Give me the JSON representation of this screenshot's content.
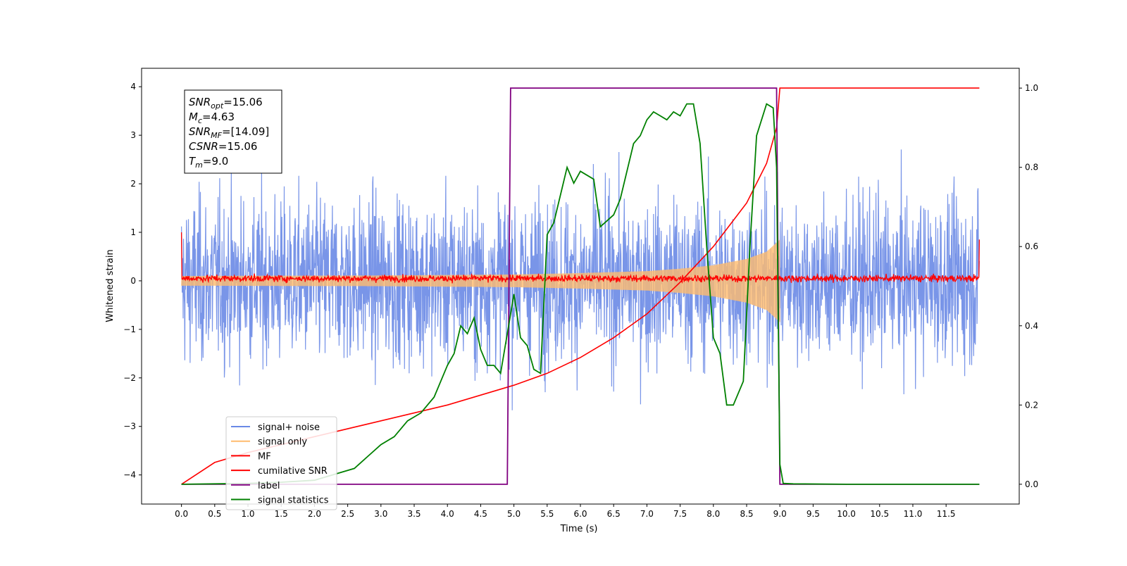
{
  "chart_data": {
    "type": "line",
    "xlabel": "Time (s)",
    "ylabel": "Whitened strain",
    "xlim": [
      -0.6,
      12.6
    ],
    "ylim": [
      -4.6,
      4.38
    ],
    "y2lim": [
      -0.05,
      1.05
    ],
    "x_ticks": [
      "0.0",
      "0.5",
      "1.0",
      "1.5",
      "2.0",
      "2.5",
      "3.0",
      "3.5",
      "4.0",
      "4.5",
      "5.0",
      "5.5",
      "6.0",
      "6.5",
      "7.0",
      "7.5",
      "8.0",
      "8.5",
      "9.0",
      "9.5",
      "10.0",
      "10.5",
      "11.0",
      "11.5"
    ],
    "y_ticks": [
      "4",
      "3",
      "2",
      "1",
      "0",
      "−1",
      "−2",
      "−3",
      "−4"
    ],
    "y2_ticks": [
      "1.0",
      "0.8",
      "0.6",
      "0.4",
      "0.2",
      "0.0"
    ],
    "annotation": {
      "lines": [
        {
          "base": "SNR",
          "sub": "opt",
          "value": "=15.06"
        },
        {
          "base": "M",
          "sub": "c",
          "value": "=4.63"
        },
        {
          "base": "SNR",
          "sub": "MF",
          "value": "=[14.09]"
        },
        {
          "base": "CSNR",
          "sub": "",
          "value": "=15.06"
        },
        {
          "base": "T",
          "sub": "m",
          "value": "=9.0"
        }
      ]
    },
    "legend": {
      "placement": "lower-left",
      "entries": [
        {
          "label": "signal+ noise",
          "color": "#6a89e6"
        },
        {
          "label": "signal only",
          "color": "#ffbb6e"
        },
        {
          "label": "MF",
          "color": "#ff0000"
        },
        {
          "label": "cumilative SNR",
          "color": "#ff0000"
        },
        {
          "label": "label",
          "color": "#800080"
        },
        {
          "label": "signal statistics",
          "color": "#008000"
        }
      ]
    },
    "series": [
      {
        "name": "signal+ noise",
        "axis": "left",
        "color": "#6a89e6",
        "noise_std": 0.85,
        "t_start": 0,
        "t_end": 12
      },
      {
        "name": "signal only",
        "axis": "left",
        "color": "#ffbb6e",
        "envelope": [
          [
            0,
            0.1
          ],
          [
            3,
            0.11
          ],
          [
            5,
            0.13
          ],
          [
            6,
            0.16
          ],
          [
            7,
            0.2
          ],
          [
            7.5,
            0.25
          ],
          [
            8,
            0.32
          ],
          [
            8.5,
            0.45
          ],
          [
            8.8,
            0.6
          ],
          [
            9.0,
            0.85
          ],
          [
            9.0,
            0
          ]
        ]
      },
      {
        "name": "MF",
        "axis": "left",
        "color": "#ff0000",
        "noise_std": 0.05,
        "edge_start": 1.0,
        "edge_end": 0.85
      },
      {
        "name": "cumilative SNR",
        "axis": "right",
        "color": "#ff0000",
        "points": [
          [
            0,
            0
          ],
          [
            0.5,
            0.055
          ],
          [
            1,
            0.08
          ],
          [
            2,
            0.12
          ],
          [
            3,
            0.16
          ],
          [
            4,
            0.2
          ],
          [
            5,
            0.25
          ],
          [
            5.5,
            0.28
          ],
          [
            6,
            0.32
          ],
          [
            6.5,
            0.37
          ],
          [
            7,
            0.43
          ],
          [
            7.5,
            0.51
          ],
          [
            8,
            0.6
          ],
          [
            8.5,
            0.71
          ],
          [
            8.8,
            0.81
          ],
          [
            8.95,
            0.9
          ],
          [
            9.0,
            1.0
          ],
          [
            12,
            1.0
          ]
        ]
      },
      {
        "name": "label",
        "axis": "right",
        "color": "#800080",
        "points": [
          [
            0,
            0
          ],
          [
            4.9,
            0
          ],
          [
            4.95,
            1.0
          ],
          [
            8.95,
            1.0
          ],
          [
            9.0,
            0
          ],
          [
            12,
            0
          ]
        ]
      },
      {
        "name": "signal statistics",
        "axis": "right",
        "color": "#008000",
        "points": [
          [
            0,
            0
          ],
          [
            0.5,
            0.001
          ],
          [
            1,
            0.002
          ],
          [
            1.5,
            0.005
          ],
          [
            2.0,
            0.01
          ],
          [
            2.2,
            0.02
          ],
          [
            2.4,
            0.03
          ],
          [
            2.6,
            0.04
          ],
          [
            2.8,
            0.07
          ],
          [
            3.0,
            0.1
          ],
          [
            3.2,
            0.12
          ],
          [
            3.4,
            0.16
          ],
          [
            3.6,
            0.18
          ],
          [
            3.8,
            0.22
          ],
          [
            4.0,
            0.3
          ],
          [
            4.1,
            0.33
          ],
          [
            4.2,
            0.4
          ],
          [
            4.3,
            0.38
          ],
          [
            4.4,
            0.42
          ],
          [
            4.5,
            0.34
          ],
          [
            4.6,
            0.3
          ],
          [
            4.7,
            0.3
          ],
          [
            4.8,
            0.28
          ],
          [
            4.9,
            0.38
          ],
          [
            5.0,
            0.48
          ],
          [
            5.1,
            0.37
          ],
          [
            5.2,
            0.35
          ],
          [
            5.3,
            0.29
          ],
          [
            5.4,
            0.28
          ],
          [
            5.5,
            0.63
          ],
          [
            5.6,
            0.66
          ],
          [
            5.8,
            0.8
          ],
          [
            5.9,
            0.76
          ],
          [
            6.0,
            0.79
          ],
          [
            6.2,
            0.77
          ],
          [
            6.3,
            0.65
          ],
          [
            6.5,
            0.68
          ],
          [
            6.6,
            0.72
          ],
          [
            6.8,
            0.86
          ],
          [
            6.9,
            0.88
          ],
          [
            7.0,
            0.92
          ],
          [
            7.1,
            0.94
          ],
          [
            7.2,
            0.93
          ],
          [
            7.3,
            0.92
          ],
          [
            7.4,
            0.94
          ],
          [
            7.5,
            0.93
          ],
          [
            7.6,
            0.96
          ],
          [
            7.7,
            0.96
          ],
          [
            7.8,
            0.86
          ],
          [
            7.9,
            0.6
          ],
          [
            8.0,
            0.37
          ],
          [
            8.1,
            0.33
          ],
          [
            8.2,
            0.2
          ],
          [
            8.3,
            0.2
          ],
          [
            8.45,
            0.26
          ],
          [
            8.55,
            0.6
          ],
          [
            8.65,
            0.88
          ],
          [
            8.8,
            0.96
          ],
          [
            8.9,
            0.95
          ],
          [
            8.95,
            0.8
          ],
          [
            9.0,
            0.05
          ],
          [
            9.05,
            0.002
          ],
          [
            9.2,
            0.001
          ],
          [
            10,
            0
          ],
          [
            12,
            0
          ]
        ]
      }
    ]
  }
}
